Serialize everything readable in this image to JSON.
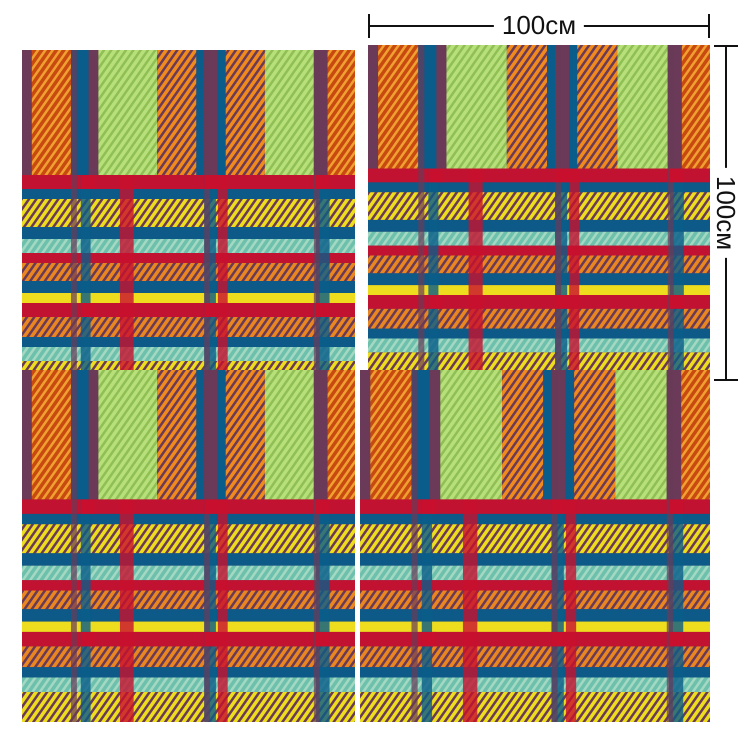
{
  "dimensions": {
    "width_label": "100см",
    "height_label": "100см"
  },
  "swatch": {
    "colors": {
      "background": "#5a3a5c",
      "red": "#c8102e",
      "blue": "#0a5c8a",
      "yellow": "#f5e61a",
      "light_green": "#b8e07a",
      "orange": "#f08a1c",
      "rust": "#c84a10",
      "teal": "#6ec8b0",
      "plum": "#6a3a58"
    }
  }
}
